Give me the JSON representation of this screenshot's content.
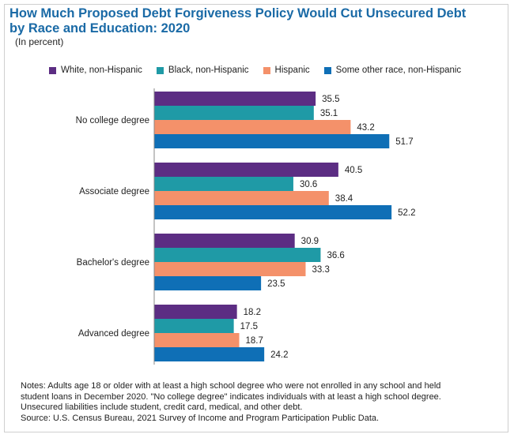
{
  "title_line1": "How Much Proposed Debt Forgiveness Policy Would Cut Unsecured Debt",
  "title_line2": "by Race and Education: 2020",
  "subtitle": "(In percent)",
  "notes": [
    "Notes: Adults age 18 or older with at least a high school degree who were not enrolled in any school and held",
    "student loans in December 2020. \"No college degree\" indicates individuals with at least a high school degree.",
    "Unsecured liabilities include student, credit card, medical, and other debt.",
    "Source: U.S. Census Bureau, 2021 Survey of Income and Program Participation Public Data."
  ],
  "chart_data": {
    "type": "bar",
    "orientation": "horizontal",
    "title": "How Much Proposed Debt Forgiveness Policy Would Cut Unsecured Debt by Race and Education: 2020",
    "subtitle": "(In percent)",
    "categories": [
      "No college degree",
      "Associate degree",
      "Bachelor's degree",
      "Advanced degree"
    ],
    "series": [
      {
        "name": "White, non-Hispanic",
        "color": "#5c2d83",
        "values": [
          35.5,
          40.5,
          30.9,
          18.2
        ]
      },
      {
        "name": "Black, non-Hispanic",
        "color": "#1f9aa6",
        "values": [
          35.1,
          30.6,
          36.6,
          17.5
        ]
      },
      {
        "name": "Hispanic",
        "color": "#f4916a",
        "values": [
          43.2,
          38.4,
          33.3,
          18.7
        ]
      },
      {
        "name": "Some other race, non-Hispanic",
        "color": "#0f6fb6",
        "values": [
          51.7,
          52.2,
          23.5,
          24.2
        ]
      }
    ],
    "legend_position": "top",
    "grid": false,
    "xlim": [
      0,
      60
    ]
  }
}
